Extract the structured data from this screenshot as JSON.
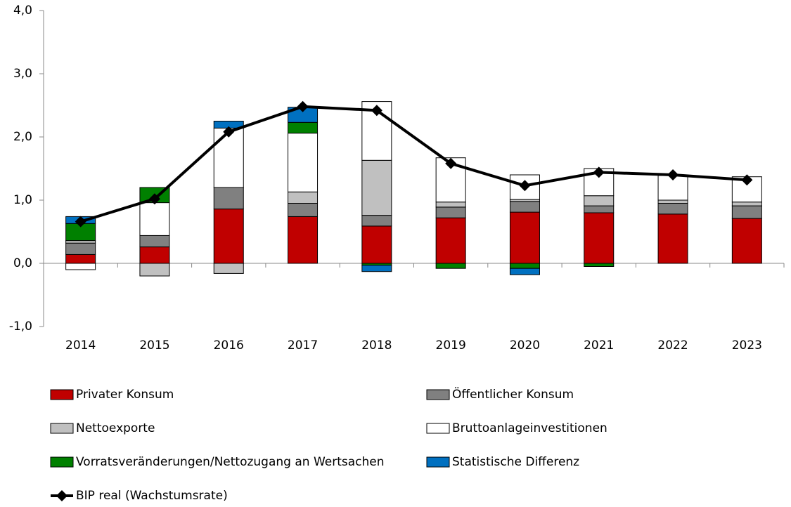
{
  "chart_data": {
    "type": "stacked-bar-line",
    "categories": [
      "2014",
      "2015",
      "2016",
      "2017",
      "2018",
      "2019",
      "2020",
      "2021",
      "2022",
      "2023"
    ],
    "series": [
      {
        "name": "Privater Konsum",
        "color": "#c00000",
        "values": [
          0.14,
          0.26,
          0.86,
          0.74,
          0.59,
          0.72,
          0.81,
          0.8,
          0.78,
          0.71
        ]
      },
      {
        "name": "Öffentlicher Konsum",
        "color": "#808080",
        "values": [
          0.18,
          0.18,
          0.34,
          0.21,
          0.17,
          0.17,
          0.17,
          0.11,
          0.17,
          0.2
        ]
      },
      {
        "name": "Nettoexporte",
        "color": "#c0c0c0",
        "values": [
          0.04,
          -0.2,
          -0.16,
          0.18,
          0.87,
          0.08,
          0.03,
          0.16,
          0.05,
          0.06
        ]
      },
      {
        "name": "Bruttoanlageinvestitionen",
        "color": "#ffffff",
        "values": [
          -0.1,
          0.52,
          0.94,
          0.93,
          0.93,
          0.7,
          0.39,
          0.43,
          0.39,
          0.4
        ]
      },
      {
        "name": "Vorratsveränderungen/Nettozugang an Wertsachen",
        "color": "#008000",
        "values": [
          0.27,
          0.24,
          0,
          0.17,
          -0.03,
          -0.08,
          -0.08,
          -0.05,
          0,
          0
        ]
      },
      {
        "name": "Statistische Differenz",
        "color": "#0070c0",
        "values": [
          0.11,
          0,
          0.11,
          0.24,
          -0.1,
          0,
          -0.1,
          0,
          0,
          0
        ]
      }
    ],
    "line": {
      "name": "BIP real (Wachstumsrate)",
      "color": "#000000",
      "values": [
        0.66,
        1.02,
        2.08,
        2.48,
        2.42,
        1.58,
        1.23,
        1.44,
        1.4,
        1.32
      ]
    },
    "ylim": [
      -1,
      4
    ],
    "yticks": [
      {
        "value": -1,
        "label": "-1,0"
      },
      {
        "value": 0,
        "label": "0,0"
      },
      {
        "value": 1,
        "label": "1,0"
      },
      {
        "value": 2,
        "label": "2,0"
      },
      {
        "value": 3,
        "label": "3,0"
      },
      {
        "value": 4,
        "label": "4,0"
      }
    ]
  }
}
